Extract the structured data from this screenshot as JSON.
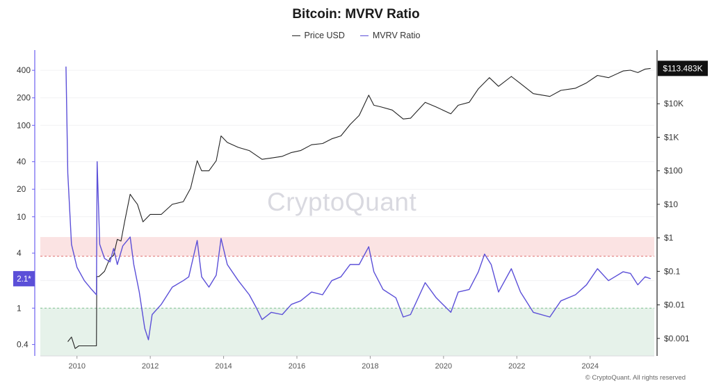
{
  "chart_data": {
    "type": "line",
    "title": "Bitcoin: MVRV Ratio",
    "legend_position": "top-center",
    "x_ticks": [
      "2010",
      "2012",
      "2014",
      "2016",
      "2018",
      "2020",
      "2022",
      "2024"
    ],
    "x_range": [
      2009.0,
      2025.75
    ],
    "left_axis": {
      "scale": "log",
      "range": [
        0.3,
        600
      ],
      "ticks": [
        0.4,
        1,
        2,
        4,
        10,
        20,
        40,
        100,
        200,
        400
      ],
      "tick_labels": [
        "0.4",
        "1",
        "2",
        "4",
        "10",
        "20",
        "40",
        "100",
        "200",
        "400"
      ],
      "current_marker": {
        "value": 2.1,
        "label": "2.1*"
      }
    },
    "right_axis": {
      "scale": "log",
      "range": [
        0.0003,
        300000
      ],
      "ticks": [
        0.001,
        0.01,
        0.1,
        1,
        10,
        100,
        1000,
        10000
      ],
      "tick_labels": [
        "$0.001",
        "$0.01",
        "$0.1",
        "$1",
        "$10",
        "$100",
        "$1K",
        "$10K"
      ],
      "current_marker": {
        "value": 113483,
        "label": "$113.483K"
      }
    },
    "bands": [
      {
        "name": "overvalued",
        "from": 3.7,
        "to": 6.0,
        "color": "#fbe3e3",
        "line": 3.7,
        "line_color": "#e07575"
      },
      {
        "name": "undervalued",
        "from": 0.3,
        "to": 1.0,
        "color": "#e6f2ea",
        "line": 1.0,
        "line_color": "#7fbf8f"
      }
    ],
    "series": [
      {
        "name": "Price USD",
        "axis": "right",
        "color": "#222222",
        "points": [
          [
            2009.75,
            0.0008
          ],
          [
            2009.85,
            0.0011
          ],
          [
            2009.95,
            0.0005
          ],
          [
            2010.05,
            0.0006
          ],
          [
            2010.3,
            0.0006
          ],
          [
            2010.53,
            0.0006
          ],
          [
            2010.54,
            0.07
          ],
          [
            2010.6,
            0.07
          ],
          [
            2010.75,
            0.1
          ],
          [
            2010.9,
            0.25
          ],
          [
            2011.0,
            0.3
          ],
          [
            2011.1,
            0.9
          ],
          [
            2011.2,
            0.8
          ],
          [
            2011.3,
            3
          ],
          [
            2011.45,
            20
          ],
          [
            2011.55,
            14
          ],
          [
            2011.65,
            10
          ],
          [
            2011.8,
            3
          ],
          [
            2012.0,
            5
          ],
          [
            2012.3,
            5
          ],
          [
            2012.6,
            10
          ],
          [
            2012.9,
            12
          ],
          [
            2013.1,
            30
          ],
          [
            2013.28,
            200
          ],
          [
            2013.4,
            100
          ],
          [
            2013.6,
            100
          ],
          [
            2013.8,
            200
          ],
          [
            2013.93,
            1100
          ],
          [
            2014.1,
            700
          ],
          [
            2014.4,
            500
          ],
          [
            2014.7,
            400
          ],
          [
            2015.05,
            220
          ],
          [
            2015.3,
            240
          ],
          [
            2015.6,
            270
          ],
          [
            2015.85,
            350
          ],
          [
            2016.1,
            400
          ],
          [
            2016.4,
            600
          ],
          [
            2016.7,
            650
          ],
          [
            2016.95,
            900
          ],
          [
            2017.2,
            1100
          ],
          [
            2017.45,
            2400
          ],
          [
            2017.7,
            4500
          ],
          [
            2017.96,
            18000
          ],
          [
            2018.1,
            9000
          ],
          [
            2018.3,
            8000
          ],
          [
            2018.6,
            6500
          ],
          [
            2018.9,
            3500
          ],
          [
            2019.1,
            3700
          ],
          [
            2019.5,
            11000
          ],
          [
            2019.8,
            8000
          ],
          [
            2020.2,
            5000
          ],
          [
            2020.4,
            9000
          ],
          [
            2020.7,
            11000
          ],
          [
            2020.95,
            28000
          ],
          [
            2021.25,
            60000
          ],
          [
            2021.5,
            33000
          ],
          [
            2021.85,
            65000
          ],
          [
            2022.1,
            40000
          ],
          [
            2022.45,
            20000
          ],
          [
            2022.9,
            16500
          ],
          [
            2023.2,
            25000
          ],
          [
            2023.6,
            29000
          ],
          [
            2023.9,
            42000
          ],
          [
            2024.2,
            70000
          ],
          [
            2024.5,
            60000
          ],
          [
            2024.9,
            95000
          ],
          [
            2025.1,
            100000
          ],
          [
            2025.3,
            85000
          ],
          [
            2025.5,
            108000
          ],
          [
            2025.65,
            113483
          ]
        ]
      },
      {
        "name": "MVRV Ratio",
        "axis": "left",
        "color": "#5b4fd8",
        "points": [
          [
            2009.7,
            440
          ],
          [
            2009.75,
            30
          ],
          [
            2009.85,
            5
          ],
          [
            2010.0,
            2.8
          ],
          [
            2010.2,
            2.0
          ],
          [
            2010.4,
            1.6
          ],
          [
            2010.53,
            1.4
          ],
          [
            2010.55,
            40
          ],
          [
            2010.62,
            5
          ],
          [
            2010.75,
            3.5
          ],
          [
            2010.9,
            3.2
          ],
          [
            2011.0,
            4.5
          ],
          [
            2011.1,
            3.0
          ],
          [
            2011.25,
            4.8
          ],
          [
            2011.45,
            6.0
          ],
          [
            2011.55,
            3.0
          ],
          [
            2011.7,
            1.5
          ],
          [
            2011.85,
            0.6
          ],
          [
            2011.95,
            0.45
          ],
          [
            2012.05,
            0.85
          ],
          [
            2012.3,
            1.1
          ],
          [
            2012.6,
            1.7
          ],
          [
            2012.9,
            2.0
          ],
          [
            2013.05,
            2.2
          ],
          [
            2013.28,
            5.5
          ],
          [
            2013.4,
            2.2
          ],
          [
            2013.6,
            1.7
          ],
          [
            2013.8,
            2.3
          ],
          [
            2013.93,
            5.8
          ],
          [
            2014.1,
            3.0
          ],
          [
            2014.4,
            2.0
          ],
          [
            2014.7,
            1.4
          ],
          [
            2014.9,
            1.0
          ],
          [
            2015.05,
            0.75
          ],
          [
            2015.3,
            0.9
          ],
          [
            2015.6,
            0.85
          ],
          [
            2015.85,
            1.1
          ],
          [
            2016.1,
            1.2
          ],
          [
            2016.4,
            1.5
          ],
          [
            2016.7,
            1.4
          ],
          [
            2016.95,
            2.0
          ],
          [
            2017.2,
            2.2
          ],
          [
            2017.45,
            3.0
          ],
          [
            2017.7,
            3.0
          ],
          [
            2017.96,
            4.7
          ],
          [
            2018.1,
            2.5
          ],
          [
            2018.35,
            1.6
          ],
          [
            2018.7,
            1.3
          ],
          [
            2018.9,
            0.8
          ],
          [
            2019.1,
            0.85
          ],
          [
            2019.5,
            1.9
          ],
          [
            2019.8,
            1.3
          ],
          [
            2020.2,
            0.9
          ],
          [
            2020.4,
            1.5
          ],
          [
            2020.7,
            1.6
          ],
          [
            2020.95,
            2.5
          ],
          [
            2021.12,
            3.9
          ],
          [
            2021.3,
            3.0
          ],
          [
            2021.5,
            1.5
          ],
          [
            2021.85,
            2.7
          ],
          [
            2022.1,
            1.5
          ],
          [
            2022.45,
            0.9
          ],
          [
            2022.9,
            0.8
          ],
          [
            2023.2,
            1.2
          ],
          [
            2023.6,
            1.4
          ],
          [
            2023.9,
            1.8
          ],
          [
            2024.2,
            2.7
          ],
          [
            2024.5,
            2.0
          ],
          [
            2024.9,
            2.5
          ],
          [
            2025.1,
            2.4
          ],
          [
            2025.3,
            1.8
          ],
          [
            2025.5,
            2.2
          ],
          [
            2025.65,
            2.1
          ]
        ]
      }
    ]
  },
  "watermark": "CryptoQuant",
  "copyright": "© CryptoQuant. All rights reserved"
}
